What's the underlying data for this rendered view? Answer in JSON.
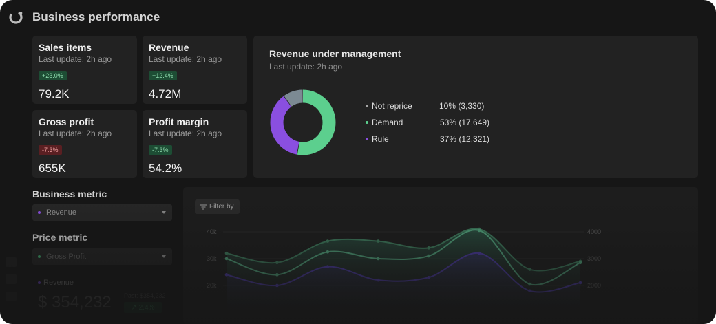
{
  "header": {
    "title": "Business performance",
    "logo_icon": "logo-icon"
  },
  "kpis": [
    {
      "title": "Sales items",
      "sub": "Last update: 2h ago",
      "badge": "+23.0%",
      "trend": "up",
      "value": "79.2K"
    },
    {
      "title": "Revenue",
      "sub": "Last update: 2h ago",
      "badge": "+12.4%",
      "trend": "up",
      "value": "4.72M"
    },
    {
      "title": "Gross profit",
      "sub": "Last update: 2h ago",
      "badge": "-7.3%",
      "trend": "down",
      "value": "655K"
    },
    {
      "title": "Profit margin",
      "sub": "Last update: 2h ago",
      "badge": "-7.3%",
      "trend": "up",
      "value": "54.2%"
    }
  ],
  "rum": {
    "title": "Revenue under management",
    "sub": "Last update: 2h ago",
    "legend": [
      {
        "label": "Not reprice",
        "value": "10% (3,330)",
        "color": "#a6a6a6"
      },
      {
        "label": "Demand",
        "value": "53% (17,649)",
        "color": "#5ccf8e"
      },
      {
        "label": "Rule",
        "value": "37% (12,321)",
        "color": "#8a4fe0"
      }
    ],
    "donut": [
      {
        "label": "Not reprice",
        "percent": 10,
        "color": "#7c8a93"
      },
      {
        "label": "Demand",
        "percent": 53,
        "color": "#5ccf8e"
      },
      {
        "label": "Rule",
        "percent": 37,
        "color": "#8a4fe0"
      }
    ]
  },
  "business_metric": {
    "label": "Business metric",
    "selected": "Revenue",
    "dot_color": "#8a4fe0"
  },
  "price_metric": {
    "label": "Price metric",
    "selected": "Gross Profit",
    "dot_color": "#3fa36b"
  },
  "summary": {
    "label": "Revenue",
    "value": "$ 354,232",
    "past": "Past: $354,232",
    "delta": "↗ 2.4%"
  },
  "chart": {
    "filter_label": "Filter by",
    "chart_data": {
      "type": "line",
      "left_axis": {
        "ticks": [
          "40k",
          "30k",
          "20k"
        ]
      },
      "right_axis": {
        "ticks": [
          "4000",
          "3000",
          "2000"
        ]
      },
      "series": [
        {
          "name": "",
          "color": "#3d7a5c",
          "values": [
            32,
            28.5,
            36.5,
            36.5,
            34,
            41,
            26,
            29
          ]
        },
        {
          "name": "",
          "color": "#4fa07a",
          "values": [
            30,
            24,
            32.5,
            30,
            31,
            40.5,
            20.5,
            28.5
          ]
        },
        {
          "name": "",
          "color": "#4a3aa0",
          "values": [
            24,
            20,
            27,
            22,
            23,
            32,
            18,
            21
          ]
        }
      ]
    }
  }
}
